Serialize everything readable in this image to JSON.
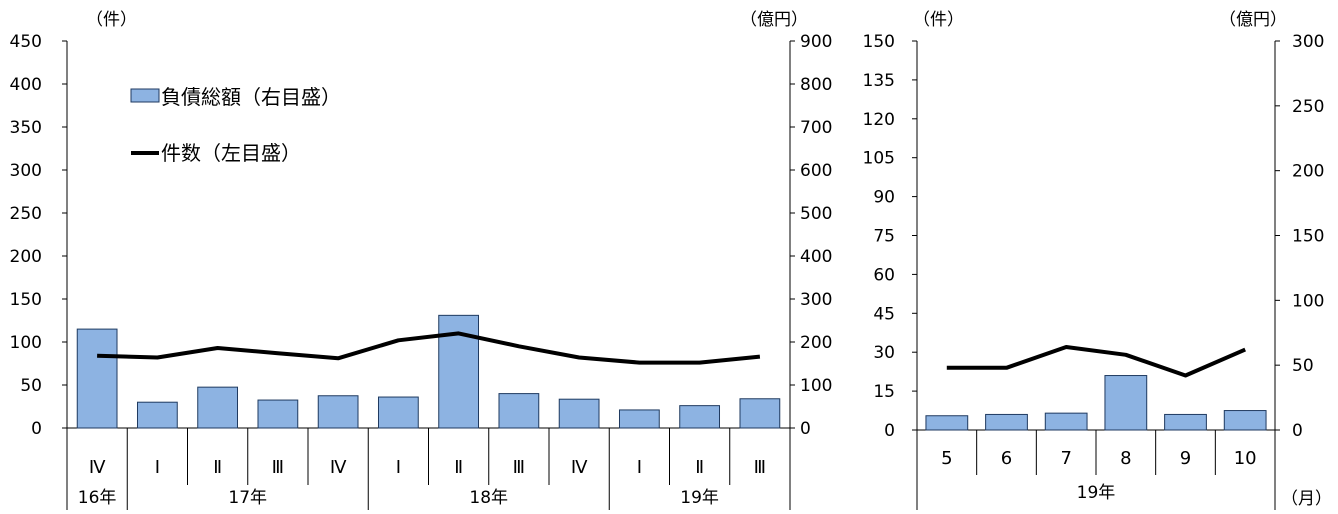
{
  "chart_data": [
    {
      "type": "bar+line",
      "title": "",
      "left_axis_unit": "（件）",
      "right_axis_unit": "（億円）",
      "ylim_left": [
        0,
        450
      ],
      "ylim_right": [
        0,
        900
      ],
      "yticks_left": [
        "0",
        "50",
        "100",
        "150",
        "200",
        "250",
        "300",
        "350",
        "400",
        "450"
      ],
      "yticks_right": [
        "0",
        "100",
        "200",
        "300",
        "400",
        "500",
        "600",
        "700",
        "800",
        "900"
      ],
      "categories": [
        "Ⅳ",
        "Ⅰ",
        "Ⅱ",
        "Ⅲ",
        "Ⅳ",
        "Ⅰ",
        "Ⅱ",
        "Ⅲ",
        "Ⅳ",
        "Ⅰ",
        "Ⅱ",
        "Ⅲ"
      ],
      "year_groups": [
        {
          "label": "16年",
          "count": 1
        },
        {
          "label": "17年",
          "count": 4
        },
        {
          "label": "18年",
          "count": 4
        },
        {
          "label": "19年",
          "count": 3
        }
      ],
      "series": [
        {
          "name": "負債総額（右目盛）",
          "type": "bar",
          "axis": "right",
          "color": "#8db3e2",
          "values": [
            230,
            60,
            95,
            65,
            75,
            72,
            262,
            80,
            67,
            42,
            52,
            68
          ]
        },
        {
          "name": "件数（左目盛）",
          "type": "line",
          "axis": "left",
          "color": "#000000",
          "values": [
            84,
            82,
            93,
            87,
            81,
            102,
            110,
            95,
            82,
            76,
            76,
            83
          ]
        }
      ],
      "legend": {
        "placement": "top-left",
        "bar_label": "負債総額（右目盛）",
        "line_label": "件数（左目盛）"
      },
      "grid": false
    },
    {
      "type": "bar+line",
      "title": "",
      "left_axis_unit": "（件）",
      "right_axis_unit": "（億円）",
      "ylim_left": [
        0,
        150
      ],
      "ylim_right": [
        0,
        300
      ],
      "yticks_left": [
        "0",
        "15",
        "30",
        "45",
        "60",
        "75",
        "90",
        "105",
        "120",
        "135",
        "150"
      ],
      "yticks_right": [
        "0",
        "50",
        "100",
        "150",
        "200",
        "250",
        "300"
      ],
      "categories": [
        "5",
        "6",
        "7",
        "8",
        "9",
        "10"
      ],
      "year_groups": [
        {
          "label": "19年",
          "count": 6
        }
      ],
      "x_unit": "（月）",
      "series": [
        {
          "name": "負債総額（右目盛）",
          "type": "bar",
          "axis": "right",
          "color": "#8db3e2",
          "values": [
            11,
            12,
            13,
            42,
            12,
            15
          ]
        },
        {
          "name": "件数（左目盛）",
          "type": "line",
          "axis": "left",
          "color": "#000000",
          "values": [
            24,
            24,
            32,
            29,
            21,
            31
          ]
        }
      ],
      "grid": false
    }
  ]
}
